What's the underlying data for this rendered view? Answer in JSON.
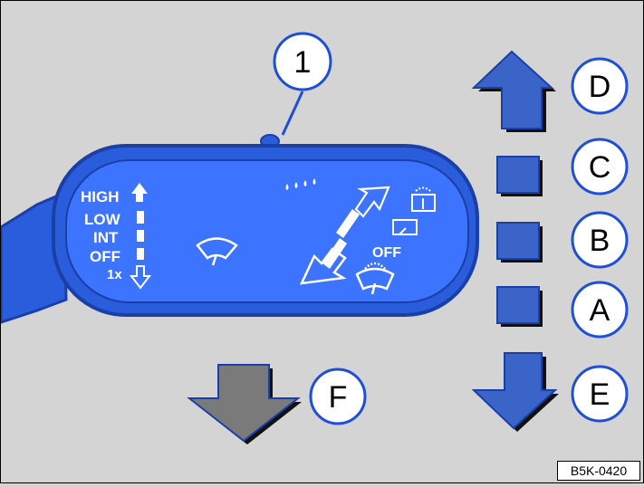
{
  "colors": {
    "background": "#d4d4d4",
    "stalk_blue": "#2a5ddc",
    "stalk_edge": "#1a3fa8",
    "switch_blue": "#3a64c8",
    "arrow_gray": "#7a7a7a",
    "callout_fill": "#ffffff",
    "callout_border": "#1f4fd8"
  },
  "stalk": {
    "speed_labels": [
      "HIGH",
      "LOW",
      "INT",
      "OFF",
      "1x"
    ],
    "washer_off_label": "OFF"
  },
  "callouts": {
    "one": "1",
    "a": "A",
    "b": "B",
    "c": "C",
    "d": "D",
    "e": "E",
    "f": "F"
  },
  "icons": [
    "wiper-icon",
    "washer-drops-icon",
    "rear-wiper-icon",
    "rear-washer-icon",
    "windshield-icon"
  ],
  "figure_code": "B5K-0420"
}
